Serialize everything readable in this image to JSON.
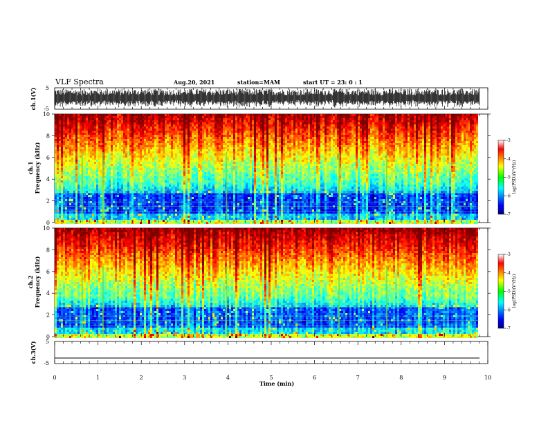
{
  "header": {
    "title": "VLF Spectra",
    "date": "Aug.20, 2021",
    "station": "station=MAM",
    "start": "start  UT  =   23: 0   : 1"
  },
  "chart_data": [
    {
      "type": "line",
      "ylabel": "ch.1(V)",
      "ylim": [
        -5,
        5
      ],
      "yticks": [
        "5",
        "-5"
      ],
      "xlim": [
        0,
        10
      ],
      "description_values": "dense waveform, amplitude mostly between -2 and 4 V"
    },
    {
      "type": "heatmap",
      "ylabel_top": "ch.1",
      "ylabel": "Frequency  (kHz)",
      "ylim": [
        0,
        10
      ],
      "yticks": [
        "0",
        "2",
        "4",
        "6",
        "8",
        "10"
      ],
      "xlim": [
        0,
        10
      ],
      "colorbar": {
        "label": "log(PSD)(V²/Hz)",
        "range": [
          -7,
          -3
        ],
        "ticks": [
          "-3",
          "-4",
          "-5",
          "-6",
          "-7"
        ]
      }
    },
    {
      "type": "heatmap",
      "ylabel_top": "ch.2",
      "ylabel": "Frequency  (kHz)",
      "ylim": [
        0,
        10
      ],
      "yticks": [
        "0",
        "2",
        "4",
        "6",
        "8",
        "10"
      ],
      "xlim": [
        0,
        10
      ],
      "colorbar": {
        "label": "log(PSD)(V²/Hz)",
        "range": [
          -7,
          -3
        ],
        "ticks": [
          "-3",
          "-4",
          "-5",
          "-6",
          "-7"
        ]
      }
    },
    {
      "type": "line",
      "ylabel": "ch.3(V)",
      "ylim": [
        -5,
        5
      ],
      "yticks": [
        "5",
        "-5"
      ],
      "xlim": [
        0,
        10
      ],
      "values_constant": -2.5
    }
  ],
  "xaxis": {
    "label": "Time  (min)",
    "ticks": [
      "0",
      "1",
      "2",
      "3",
      "4",
      "5",
      "6",
      "7",
      "8",
      "9",
      "10"
    ]
  }
}
